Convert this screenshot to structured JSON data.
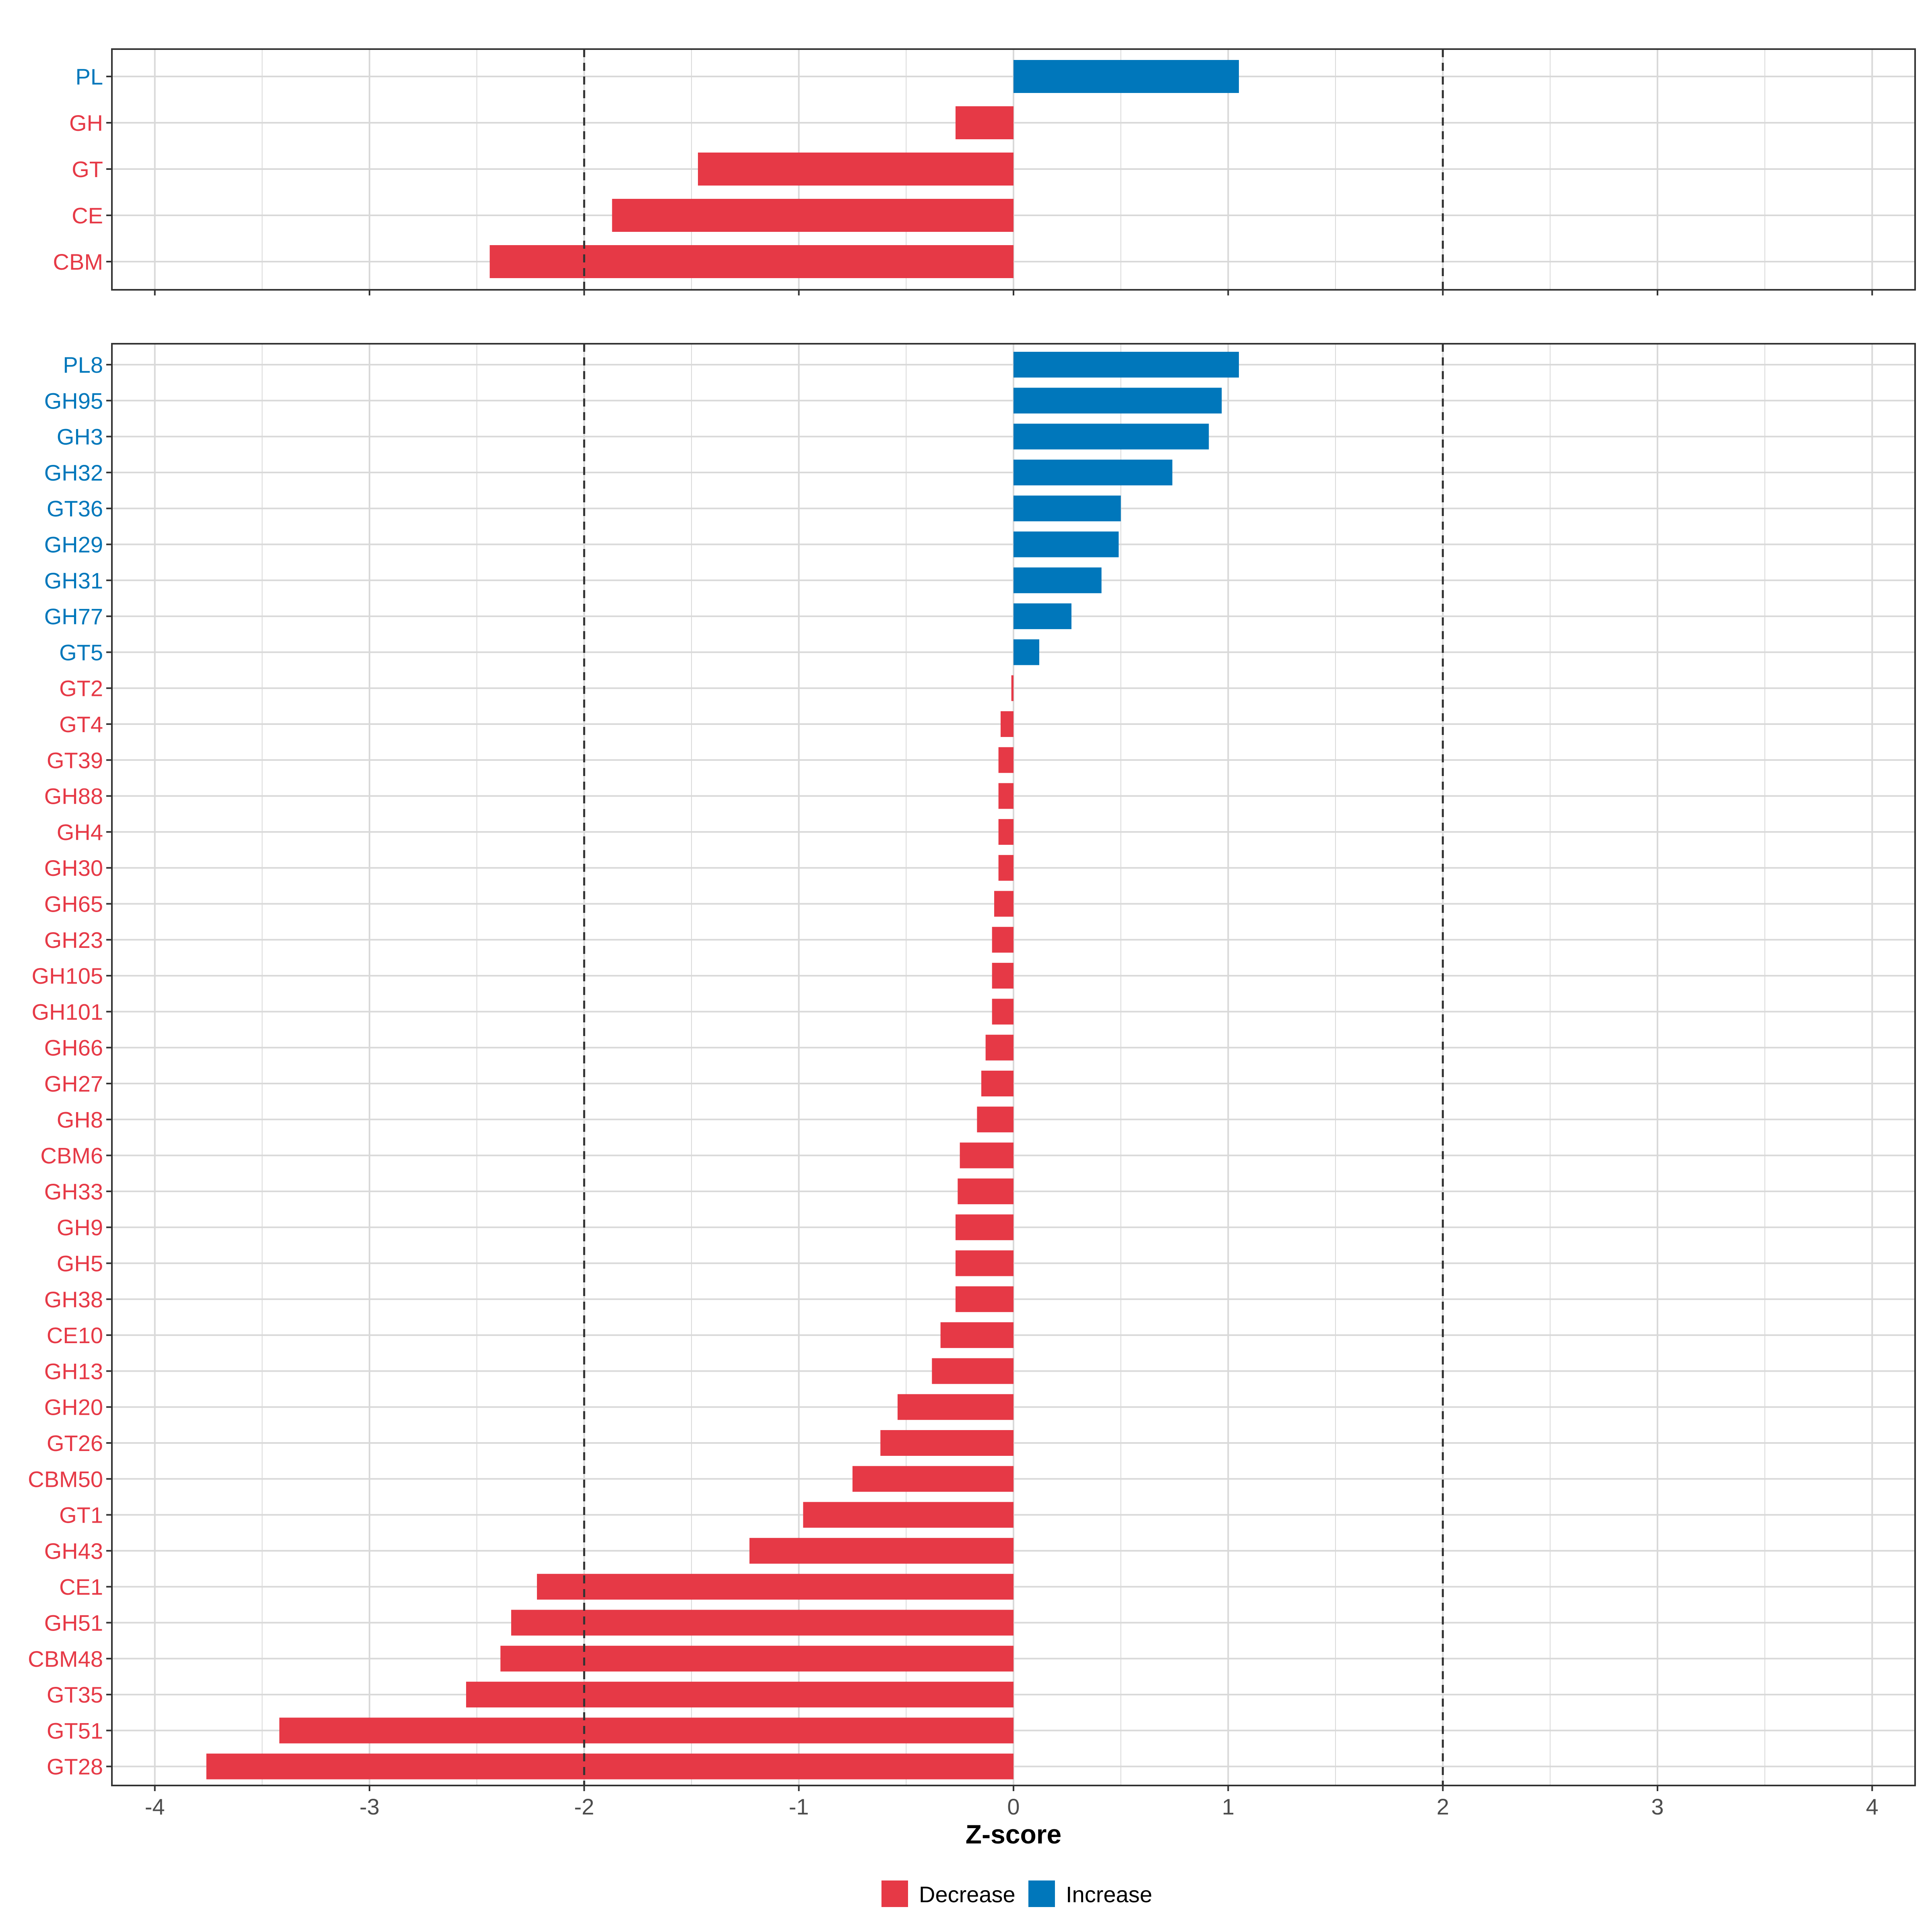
{
  "chart_data": [
    {
      "type": "bar",
      "orientation": "horizontal",
      "panel": "top",
      "categories": [
        "PL",
        "GH",
        "GT",
        "CE",
        "CBM"
      ],
      "values": [
        1.05,
        -0.27,
        -1.47,
        -1.87,
        -2.44
      ],
      "groups": [
        "Increase",
        "Decrease",
        "Decrease",
        "Decrease",
        "Decrease"
      ],
      "xlim": [
        -4.2,
        4.2
      ],
      "reference_lines": [
        -2,
        2
      ],
      "grid": true
    },
    {
      "type": "bar",
      "orientation": "horizontal",
      "panel": "bottom",
      "categories": [
        "PL8",
        "GH95",
        "GH3",
        "GH32",
        "GT36",
        "GH29",
        "GH31",
        "GH77",
        "GT5",
        "GT2",
        "GT4",
        "GT39",
        "GH88",
        "GH4",
        "GH30",
        "GH65",
        "GH23",
        "GH105",
        "GH101",
        "GH66",
        "GH27",
        "GH8",
        "CBM6",
        "GH33",
        "GH9",
        "GH5",
        "GH38",
        "CE10",
        "GH13",
        "GH20",
        "GT26",
        "CBM50",
        "GT1",
        "GH43",
        "CE1",
        "GH51",
        "CBM48",
        "GT35",
        "GT51",
        "GT28"
      ],
      "values": [
        1.05,
        0.97,
        0.91,
        0.74,
        0.5,
        0.49,
        0.41,
        0.27,
        0.12,
        -0.01,
        -0.06,
        -0.07,
        -0.07,
        -0.07,
        -0.07,
        -0.09,
        -0.1,
        -0.1,
        -0.1,
        -0.13,
        -0.15,
        -0.17,
        -0.25,
        -0.26,
        -0.27,
        -0.27,
        -0.27,
        -0.34,
        -0.38,
        -0.54,
        -0.62,
        -0.75,
        -0.98,
        -1.23,
        -2.22,
        -2.34,
        -2.39,
        -2.55,
        -3.42,
        -3.76
      ],
      "groups": [
        "Increase",
        "Increase",
        "Increase",
        "Increase",
        "Increase",
        "Increase",
        "Increase",
        "Increase",
        "Increase",
        "Decrease",
        "Decrease",
        "Decrease",
        "Decrease",
        "Decrease",
        "Decrease",
        "Decrease",
        "Decrease",
        "Decrease",
        "Decrease",
        "Decrease",
        "Decrease",
        "Decrease",
        "Decrease",
        "Decrease",
        "Decrease",
        "Decrease",
        "Decrease",
        "Decrease",
        "Decrease",
        "Decrease",
        "Decrease",
        "Decrease",
        "Decrease",
        "Decrease",
        "Decrease",
        "Decrease",
        "Decrease",
        "Decrease",
        "Decrease",
        "Decrease"
      ],
      "xlabel": "Z-score",
      "xlim": [
        -4.2,
        4.2
      ],
      "xticks": [
        -4,
        -3,
        -2,
        -1,
        0,
        1,
        2,
        3,
        4
      ],
      "reference_lines": [
        -2,
        2
      ],
      "grid": true
    }
  ],
  "legend": {
    "placement": "bottom",
    "items": [
      {
        "label": "Decrease",
        "color": "#E63946"
      },
      {
        "label": "Increase",
        "color": "#0077BB"
      }
    ]
  },
  "colors": {
    "Decrease": "#E63946",
    "Increase": "#0077BB",
    "grid": "#D9D9D9",
    "panel_border": "#333333",
    "reference_line": "#333333"
  }
}
